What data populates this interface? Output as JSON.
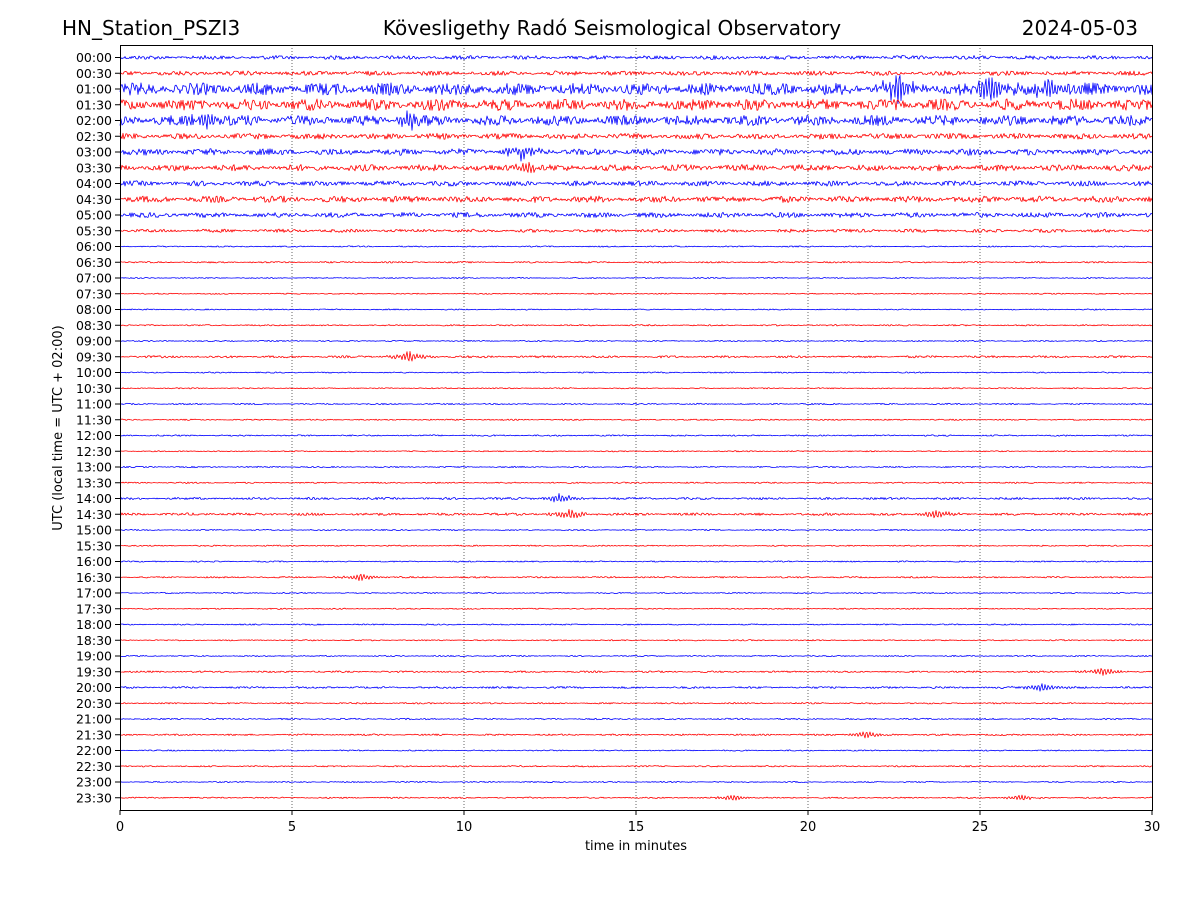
{
  "header": {
    "station": "HN_Station_PSZI3",
    "title": "Kövesligethy Radó Seismological Observatory",
    "date": "2024-05-03"
  },
  "chart_data": {
    "type": "line",
    "title": "Kövesligethy Radó Seismological Observatory",
    "xlabel": "time in minutes",
    "ylabel": "UTC (local time = UTC + 02:00)",
    "xlim": [
      0,
      30
    ],
    "x_ticks": [
      0,
      5,
      10,
      15,
      20,
      25,
      30
    ],
    "grid": "vertical dotted lines at 5-minute intervals",
    "trace_colors": [
      "#0000ff",
      "#ff0000"
    ],
    "color_rule": "alternating: blue for :00 rows, red for :30 rows",
    "rows": [
      {
        "label": "00:00",
        "level": 0.25,
        "color": "#0000ff"
      },
      {
        "label": "00:30",
        "level": 0.3,
        "color": "#ff0000"
      },
      {
        "label": "01:00",
        "level": 0.9,
        "color": "#0000ff"
      },
      {
        "label": "01:30",
        "level": 0.85,
        "color": "#ff0000"
      },
      {
        "label": "02:00",
        "level": 0.75,
        "color": "#0000ff"
      },
      {
        "label": "02:30",
        "level": 0.4,
        "color": "#ff0000"
      },
      {
        "label": "03:00",
        "level": 0.45,
        "color": "#0000ff"
      },
      {
        "label": "03:30",
        "level": 0.45,
        "color": "#ff0000"
      },
      {
        "label": "04:00",
        "level": 0.35,
        "color": "#0000ff"
      },
      {
        "label": "04:30",
        "level": 0.45,
        "color": "#ff0000"
      },
      {
        "label": "05:00",
        "level": 0.35,
        "color": "#0000ff"
      },
      {
        "label": "05:30",
        "level": 0.2,
        "color": "#ff0000"
      },
      {
        "label": "06:00",
        "level": 0.04,
        "color": "#0000ff"
      },
      {
        "label": "06:30",
        "level": 0.06,
        "color": "#ff0000"
      },
      {
        "label": "07:00",
        "level": 0.03,
        "color": "#0000ff"
      },
      {
        "label": "07:30",
        "level": 0.03,
        "color": "#ff0000"
      },
      {
        "label": "08:00",
        "level": 0.03,
        "color": "#0000ff"
      },
      {
        "label": "08:30",
        "level": 0.05,
        "color": "#ff0000"
      },
      {
        "label": "09:00",
        "level": 0.04,
        "color": "#0000ff"
      },
      {
        "label": "09:30",
        "level": 0.12,
        "color": "#ff0000"
      },
      {
        "label": "10:00",
        "level": 0.04,
        "color": "#0000ff"
      },
      {
        "label": "10:30",
        "level": 0.03,
        "color": "#ff0000"
      },
      {
        "label": "11:00",
        "level": 0.05,
        "color": "#0000ff"
      },
      {
        "label": "11:30",
        "level": 0.04,
        "color": "#ff0000"
      },
      {
        "label": "12:00",
        "level": 0.06,
        "color": "#0000ff"
      },
      {
        "label": "12:30",
        "level": 0.03,
        "color": "#ff0000"
      },
      {
        "label": "13:00",
        "level": 0.05,
        "color": "#0000ff"
      },
      {
        "label": "13:30",
        "level": 0.05,
        "color": "#ff0000"
      },
      {
        "label": "14:00",
        "level": 0.12,
        "color": "#0000ff"
      },
      {
        "label": "14:30",
        "level": 0.15,
        "color": "#ff0000"
      },
      {
        "label": "15:00",
        "level": 0.04,
        "color": "#0000ff"
      },
      {
        "label": "15:30",
        "level": 0.04,
        "color": "#ff0000"
      },
      {
        "label": "16:00",
        "level": 0.04,
        "color": "#0000ff"
      },
      {
        "label": "16:30",
        "level": 0.06,
        "color": "#ff0000"
      },
      {
        "label": "17:00",
        "level": 0.04,
        "color": "#0000ff"
      },
      {
        "label": "17:30",
        "level": 0.03,
        "color": "#ff0000"
      },
      {
        "label": "18:00",
        "level": 0.04,
        "color": "#0000ff"
      },
      {
        "label": "18:30",
        "level": 0.04,
        "color": "#ff0000"
      },
      {
        "label": "19:00",
        "level": 0.04,
        "color": "#0000ff"
      },
      {
        "label": "19:30",
        "level": 0.08,
        "color": "#ff0000"
      },
      {
        "label": "20:00",
        "level": 0.1,
        "color": "#0000ff"
      },
      {
        "label": "20:30",
        "level": 0.06,
        "color": "#ff0000"
      },
      {
        "label": "21:00",
        "level": 0.06,
        "color": "#0000ff"
      },
      {
        "label": "21:30",
        "level": 0.07,
        "color": "#ff0000"
      },
      {
        "label": "22:00",
        "level": 0.04,
        "color": "#0000ff"
      },
      {
        "label": "22:30",
        "level": 0.05,
        "color": "#ff0000"
      },
      {
        "label": "23:00",
        "level": 0.04,
        "color": "#0000ff"
      },
      {
        "label": "23:30",
        "level": 0.05,
        "color": "#ff0000"
      }
    ],
    "events": [
      {
        "row": "01:00",
        "minute": 22.6,
        "amplitude": 1.0
      },
      {
        "row": "01:00",
        "minute": 25.3,
        "amplitude": 1.0
      },
      {
        "row": "01:00",
        "minute": 27.0,
        "amplitude": 0.8
      },
      {
        "row": "02:00",
        "minute": 2.5,
        "amplitude": 0.6
      },
      {
        "row": "02:00",
        "minute": 8.4,
        "amplitude": 0.6
      },
      {
        "row": "03:00",
        "minute": 11.7,
        "amplitude": 0.5
      },
      {
        "row": "03:30",
        "minute": 11.8,
        "amplitude": 0.4
      },
      {
        "row": "09:30",
        "minute": 8.4,
        "amplitude": 0.35
      },
      {
        "row": "14:00",
        "minute": 12.8,
        "amplitude": 0.35
      },
      {
        "row": "14:30",
        "minute": 13.1,
        "amplitude": 0.35
      },
      {
        "row": "14:30",
        "minute": 23.7,
        "amplitude": 0.3
      },
      {
        "row": "16:30",
        "minute": 7.0,
        "amplitude": 0.25
      },
      {
        "row": "19:30",
        "minute": 28.6,
        "amplitude": 0.3
      },
      {
        "row": "20:00",
        "minute": 26.8,
        "amplitude": 0.3
      },
      {
        "row": "21:30",
        "minute": 21.7,
        "amplitude": 0.25
      },
      {
        "row": "23:30",
        "minute": 17.8,
        "amplitude": 0.2
      },
      {
        "row": "23:30",
        "minute": 26.2,
        "amplitude": 0.2
      }
    ]
  }
}
